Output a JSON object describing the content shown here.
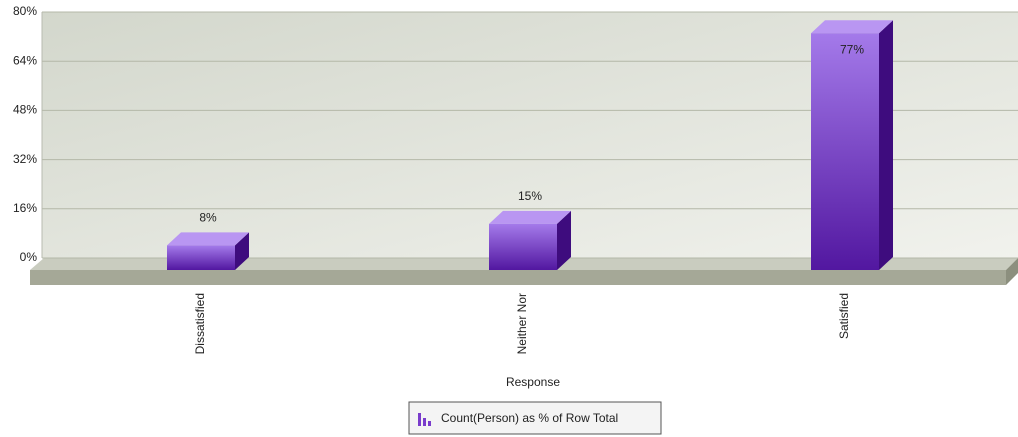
{
  "chart_data": {
    "type": "bar3d",
    "categories": [
      "Dissatisfied",
      "Neither Nor",
      "Satisfied"
    ],
    "values": [
      8,
      15,
      77
    ],
    "value_labels": [
      "8%",
      "15%",
      "77%"
    ],
    "color": "#7a3ccc",
    "ylim": [
      0,
      80
    ],
    "yticks": [
      {
        "value": 0,
        "label": "0%"
      },
      {
        "value": 16,
        "label": "16%"
      },
      {
        "value": 32,
        "label": "32%"
      },
      {
        "value": 48,
        "label": "48%"
      },
      {
        "value": 64,
        "label": "64%"
      },
      {
        "value": 80,
        "label": "80%"
      }
    ],
    "grid": true,
    "xlabel": "Response",
    "legend": {
      "label": "Count(Person) as % of Row Total",
      "position": "bottom"
    }
  }
}
